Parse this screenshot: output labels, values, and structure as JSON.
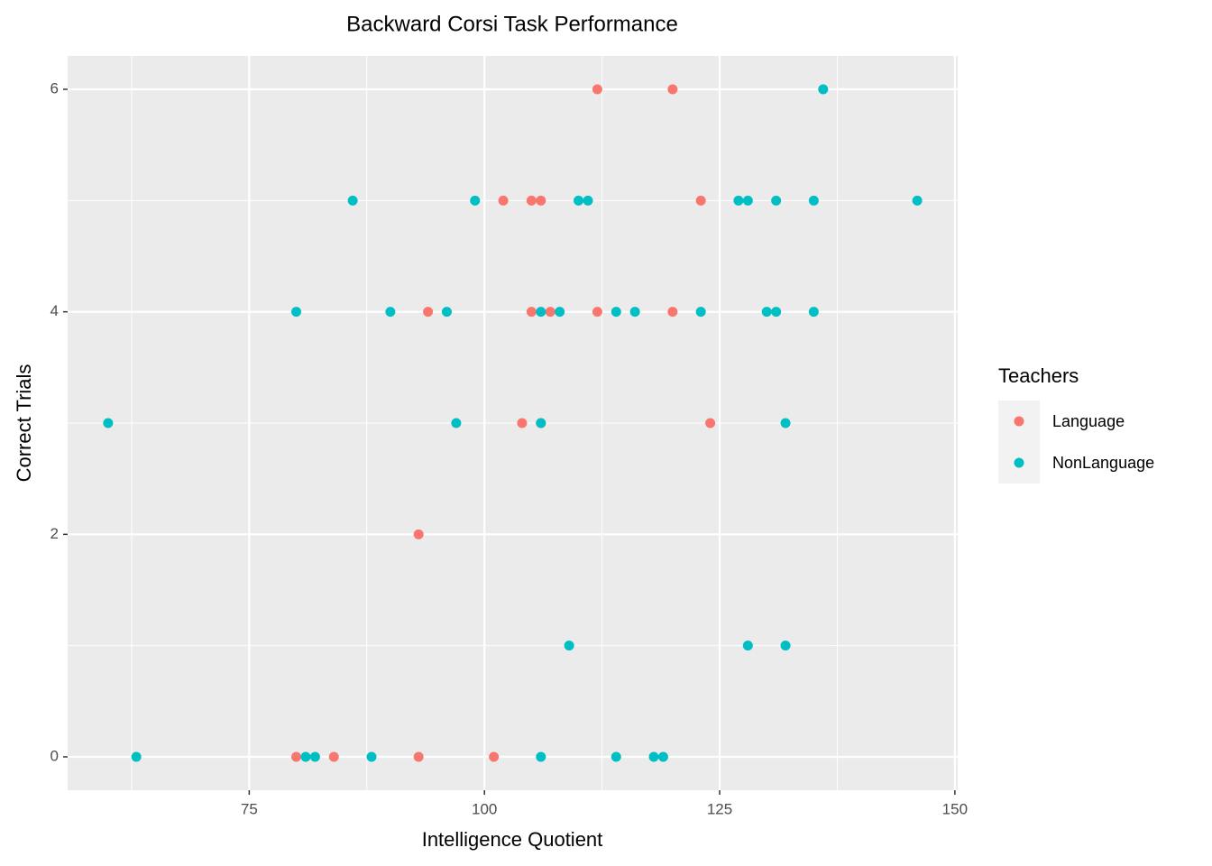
{
  "chart_data": {
    "type": "scatter",
    "title": "Backward Corsi Task Performance",
    "x_label": "Intelligence Quotient",
    "y_label": "Correct Trials",
    "legend_title": "Teachers",
    "legend_position": "right",
    "grid": true,
    "xlim": [
      55.7,
      150.3
    ],
    "ylim": [
      -0.3,
      6.3
    ],
    "xticks": [
      75,
      100,
      125,
      150
    ],
    "yticks": [
      0,
      2,
      4,
      6
    ],
    "series": [
      {
        "name": "Language",
        "color": "#F8766D",
        "x": [
          112,
          120,
          102,
          105,
          106,
          123,
          94,
          105,
          107,
          112,
          120,
          104,
          106,
          124,
          93,
          80,
          84,
          93,
          101
        ],
        "values": [
          6,
          6,
          5,
          5,
          5,
          5,
          4,
          4,
          4,
          4,
          4,
          3,
          3,
          3,
          2,
          0,
          0,
          0,
          0
        ]
      },
      {
        "name": "NonLanguage",
        "color": "#00BFC4",
        "x": [
          136,
          86,
          99,
          110,
          111,
          127,
          128,
          131,
          135,
          146,
          80,
          90,
          96,
          106,
          108,
          114,
          116,
          123,
          130,
          131,
          135,
          60,
          97,
          106,
          132,
          109,
          128,
          132,
          63,
          81,
          82,
          88,
          106,
          114,
          118,
          119
        ],
        "values": [
          6,
          5,
          5,
          5,
          5,
          5,
          5,
          5,
          5,
          5,
          4,
          4,
          4,
          4,
          4,
          4,
          4,
          4,
          4,
          4,
          4,
          3,
          3,
          3,
          3,
          1,
          1,
          1,
          0,
          0,
          0,
          0,
          0,
          0,
          0,
          0
        ]
      }
    ]
  }
}
